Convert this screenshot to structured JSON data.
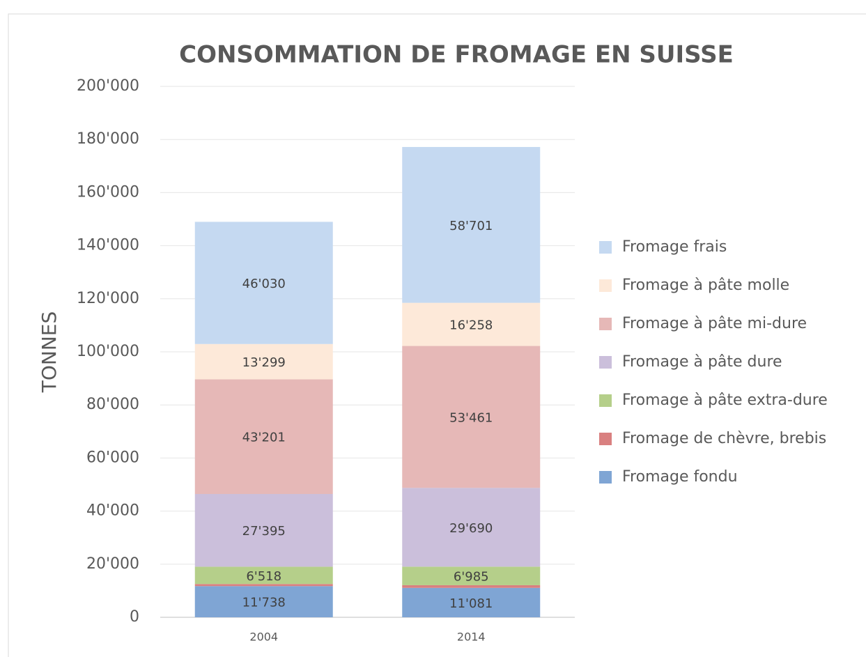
{
  "chart_data": {
    "type": "stacked_bar",
    "title": "CONSOMMATION DE FROMAGE EN SUISSE",
    "y_label": "TONNES",
    "categories": [
      "2004",
      "2014"
    ],
    "series": [
      {
        "name": "Fromage fondu",
        "color": "#7fa5d4",
        "values": [
          11738,
          11081
        ],
        "value_labels": [
          "11'738",
          "11'081"
        ]
      },
      {
        "name": "Fromage de chèvre, brebis",
        "color": "#d98080",
        "values": [
          800,
          1000
        ],
        "value_labels": [
          null,
          null
        ]
      },
      {
        "name": "Fromage à pâte extra-dure",
        "color": "#b5cf8a",
        "values": [
          6518,
          6985
        ],
        "value_labels": [
          "6'518",
          "6'985"
        ]
      },
      {
        "name": "Fromage à pâte dure",
        "color": "#cbbfdb",
        "values": [
          27395,
          29690
        ],
        "value_labels": [
          "27'395",
          "29'690"
        ]
      },
      {
        "name": "Fromage à pâte mi-dure",
        "color": "#e6b8b7",
        "values": [
          43201,
          53461
        ],
        "value_labels": [
          "43'201",
          "53'461"
        ]
      },
      {
        "name": "Fromage à pâte molle",
        "color": "#fde9d9",
        "values": [
          13299,
          16258
        ],
        "value_labels": [
          "13'299",
          "16'258"
        ]
      },
      {
        "name": "Fromage frais",
        "color": "#c5d9f1",
        "values": [
          46030,
          58701
        ],
        "value_labels": [
          "46'030",
          "58'701"
        ]
      }
    ],
    "ylim": [
      0,
      200000
    ],
    "yticks": [
      0,
      {
        "value": 20000,
        "label": "20'000"
      },
      {
        "value": 40000,
        "label": "40'000"
      },
      {
        "value": 60000,
        "label": "60'000"
      },
      {
        "value": 80000,
        "label": "80'000"
      },
      {
        "value": 100000,
        "label": "100'000"
      },
      {
        "value": 120000,
        "label": "120'000"
      },
      {
        "value": 140000,
        "label": "140'000"
      },
      {
        "value": 160000,
        "label": "160'000"
      },
      {
        "value": 180000,
        "label": "180'000"
      },
      {
        "value": 200000,
        "label": "200'000"
      }
    ],
    "grid": true,
    "legend": "right"
  }
}
